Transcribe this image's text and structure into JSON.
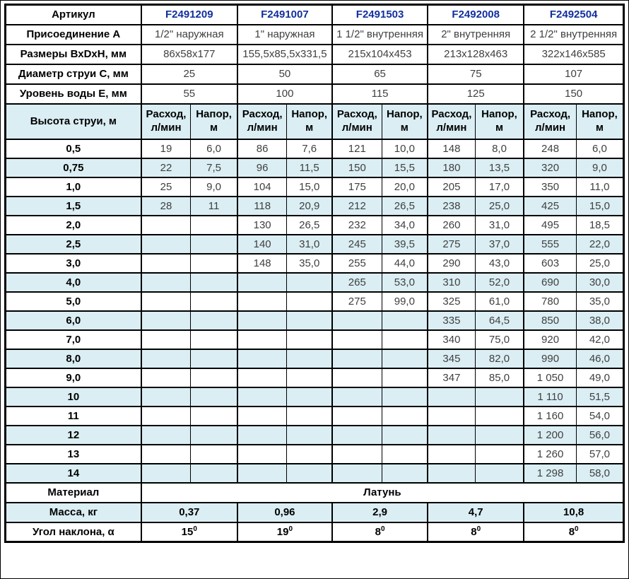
{
  "colors": {
    "stripe_blue": "#daeef3",
    "article_blue": "#112f9f",
    "border_black": "#000000",
    "value_gray": "#404040"
  },
  "header": {
    "article_label": "Артикул",
    "articles": [
      "F2491209",
      "F2491007",
      "F2491503",
      "F2492008",
      "F2492504"
    ],
    "spec_rows": [
      {
        "label": "Присоединение А",
        "values": [
          "1/2\" наружная",
          "1\" наружная",
          "1 1/2\" внутренняя",
          "2\" внутренняя",
          "2 1/2\" внутренняя"
        ]
      },
      {
        "label": "Размеры ВхDхН, мм",
        "values": [
          "86х58х177",
          "155,5х85,5х331,5",
          "215х104х453",
          "213х128х463",
          "322х146х585"
        ]
      },
      {
        "label": "Диаметр струи С, мм",
        "values": [
          "25",
          "50",
          "65",
          "75",
          "107"
        ]
      },
      {
        "label": "Уровень воды Е, мм",
        "values": [
          "55",
          "100",
          "115",
          "125",
          "150"
        ]
      }
    ],
    "jet_height_label": "Высота струи, м",
    "flow_header": {
      "line1": "Расход,",
      "line2": "л/мин"
    },
    "pressure_header": {
      "line1": "Напор,",
      "line2": "м"
    }
  },
  "data_rows": [
    {
      "height": "0,5",
      "values": [
        "19",
        "6,0",
        "86",
        "7,6",
        "121",
        "10,0",
        "148",
        "8,0",
        "248",
        "6,0"
      ]
    },
    {
      "height": "0,75",
      "values": [
        "22",
        "7,5",
        "96",
        "11,5",
        "150",
        "15,5",
        "180",
        "13,5",
        "320",
        "9,0"
      ]
    },
    {
      "height": "1,0",
      "values": [
        "25",
        "9,0",
        "104",
        "15,0",
        "175",
        "20,0",
        "205",
        "17,0",
        "350",
        "11,0"
      ]
    },
    {
      "height": "1,5",
      "values": [
        "28",
        "11",
        "118",
        "20,9",
        "212",
        "26,5",
        "238",
        "25,0",
        "425",
        "15,0"
      ]
    },
    {
      "height": "2,0",
      "values": [
        "",
        "",
        "130",
        "26,5",
        "232",
        "34,0",
        "260",
        "31,0",
        "495",
        "18,5"
      ]
    },
    {
      "height": "2,5",
      "values": [
        "",
        "",
        "140",
        "31,0",
        "245",
        "39,5",
        "275",
        "37,0",
        "555",
        "22,0"
      ]
    },
    {
      "height": "3,0",
      "values": [
        "",
        "",
        "148",
        "35,0",
        "255",
        "44,0",
        "290",
        "43,0",
        "603",
        "25,0"
      ]
    },
    {
      "height": "4,0",
      "values": [
        "",
        "",
        "",
        "",
        "265",
        "53,0",
        "310",
        "52,0",
        "690",
        "30,0"
      ]
    },
    {
      "height": "5,0",
      "values": [
        "",
        "",
        "",
        "",
        "275",
        "99,0",
        "325",
        "61,0",
        "780",
        "35,0"
      ]
    },
    {
      "height": "6,0",
      "values": [
        "",
        "",
        "",
        "",
        "",
        "",
        "335",
        "64,5",
        "850",
        "38,0"
      ]
    },
    {
      "height": "7,0",
      "values": [
        "",
        "",
        "",
        "",
        "",
        "",
        "340",
        "75,0",
        "920",
        "42,0"
      ]
    },
    {
      "height": "8,0",
      "values": [
        "",
        "",
        "",
        "",
        "",
        "",
        "345",
        "82,0",
        "990",
        "46,0"
      ]
    },
    {
      "height": "9,0",
      "values": [
        "",
        "",
        "",
        "",
        "",
        "",
        "347",
        "85,0",
        "1 050",
        "49,0"
      ]
    },
    {
      "height": "10",
      "values": [
        "",
        "",
        "",
        "",
        "",
        "",
        "",
        "",
        "1 110",
        "51,5"
      ]
    },
    {
      "height": "11",
      "values": [
        "",
        "",
        "",
        "",
        "",
        "",
        "",
        "",
        "1 160",
        "54,0"
      ]
    },
    {
      "height": "12",
      "values": [
        "",
        "",
        "",
        "",
        "",
        "",
        "",
        "",
        "1 200",
        "56,0"
      ]
    },
    {
      "height": "13",
      "values": [
        "",
        "",
        "",
        "",
        "",
        "",
        "",
        "",
        "1 260",
        "57,0"
      ]
    },
    {
      "height": "14",
      "values": [
        "",
        "",
        "",
        "",
        "",
        "",
        "",
        "",
        "1 298",
        "58,0"
      ]
    }
  ],
  "footer": {
    "material_label": "Материал",
    "material_value": "Латунь",
    "mass_label": "Масса, кг",
    "mass_values": [
      "0,37",
      "0,96",
      "2,9",
      "4,7",
      "10,8"
    ],
    "angle_label": "Угол наклона, α",
    "angle_values": [
      {
        "base": "15",
        "sup": "0"
      },
      {
        "base": "19",
        "sup": "0"
      },
      {
        "base": "8",
        "sup": "0"
      },
      {
        "base": "8",
        "sup": "0"
      },
      {
        "base": "8",
        "sup": "0"
      }
    ]
  }
}
